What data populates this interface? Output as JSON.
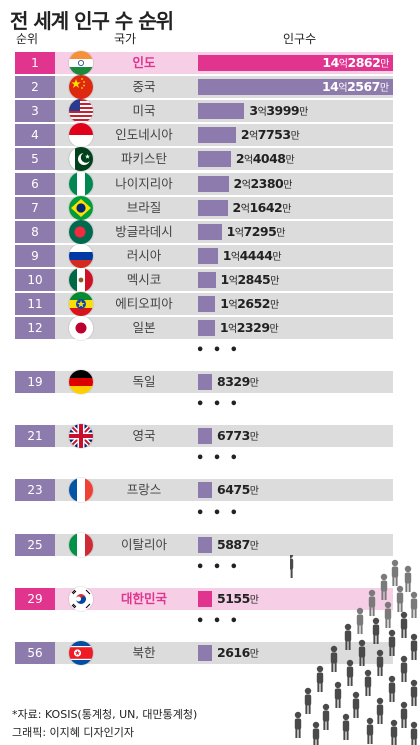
{
  "title": "전 세계 인구 수 순위",
  "headers": {
    "rank": "순위",
    "country": "국가",
    "population": "인구수"
  },
  "ellipsis": "• • •",
  "chart_data": {
    "type": "bar",
    "title": "전 세계 인구 수 순위",
    "unit": "명",
    "series": [
      {
        "values": [
          1428620000,
          1425670000,
          339990000,
          277530000,
          240480000,
          223800000,
          216420000,
          172950000,
          144440000,
          128450000,
          126520000,
          123290000,
          83290000,
          67730000,
          64750000,
          58870000,
          51550000,
          26160000
        ]
      }
    ],
    "rows": [
      {
        "rank": "1",
        "country": "인도",
        "eok": "14",
        "man": "2862",
        "value": 1428620000,
        "flag": "india-flag",
        "highlight": true
      },
      {
        "rank": "2",
        "country": "중국",
        "eok": "14",
        "man": "2567",
        "value": 1425670000,
        "flag": "china-flag"
      },
      {
        "rank": "3",
        "country": "미국",
        "eok": "3",
        "man": "3999",
        "value": 339990000,
        "flag": "usa-flag"
      },
      {
        "rank": "4",
        "country": "인도네시아",
        "eok": "2",
        "man": "7753",
        "value": 277530000,
        "flag": "indonesia-flag"
      },
      {
        "rank": "5",
        "country": "파키스탄",
        "eok": "2",
        "man": "4048",
        "value": 240480000,
        "flag": "pakistan-flag"
      },
      {
        "rank": "6",
        "country": "나이지리아",
        "eok": "2",
        "man": "2380",
        "value": 223800000,
        "flag": "nigeria-flag"
      },
      {
        "rank": "7",
        "country": "브라질",
        "eok": "2",
        "man": "1642",
        "value": 216420000,
        "flag": "brazil-flag"
      },
      {
        "rank": "8",
        "country": "방글라데시",
        "eok": "1",
        "man": "7295",
        "value": 172950000,
        "flag": "bangladesh-flag"
      },
      {
        "rank": "9",
        "country": "러시아",
        "eok": "1",
        "man": "4444",
        "value": 144440000,
        "flag": "russia-flag"
      },
      {
        "rank": "10",
        "country": "멕시코",
        "eok": "1",
        "man": "2845",
        "value": 128450000,
        "flag": "mexico-flag"
      },
      {
        "rank": "11",
        "country": "에티오피아",
        "eok": "1",
        "man": "2652",
        "value": 126520000,
        "flag": "ethiopia-flag"
      },
      {
        "rank": "12",
        "country": "일본",
        "eok": "1",
        "man": "2329",
        "value": 123290000,
        "flag": "japan-flag"
      },
      {
        "rank": "19",
        "country": "독일",
        "eok": "",
        "man": "8329",
        "value": 83290000,
        "flag": "germany-flag",
        "gap_before": true
      },
      {
        "rank": "21",
        "country": "영국",
        "eok": "",
        "man": "6773",
        "value": 67730000,
        "flag": "uk-flag",
        "gap_before": true
      },
      {
        "rank": "23",
        "country": "프랑스",
        "eok": "",
        "man": "6475",
        "value": 64750000,
        "flag": "france-flag",
        "gap_before": true
      },
      {
        "rank": "25",
        "country": "이탈리아",
        "eok": "",
        "man": "5887",
        "value": 58870000,
        "flag": "italy-flag",
        "gap_before": true
      },
      {
        "rank": "29",
        "country": "대한민국",
        "eok": "",
        "man": "5155",
        "value": 51550000,
        "flag": "south-korea-flag",
        "gap_before": true,
        "highlight": true
      },
      {
        "rank": "56",
        "country": "북한",
        "eok": "",
        "man": "2616",
        "value": 26160000,
        "flag": "north-korea-flag",
        "gap_before": true
      }
    ]
  },
  "unit_eok": "억",
  "unit_man": "만",
  "footer": {
    "source": "*자료: KOSIS(통계청, UN, 대만통계청)",
    "credit": "그래픽: 이지혜 디자인기자"
  },
  "colors": {
    "bar": "#8e7bad",
    "highlight": "#e0348f",
    "highlight_bg": "#f6cfe6",
    "row_bg": "#dcdcdc"
  }
}
